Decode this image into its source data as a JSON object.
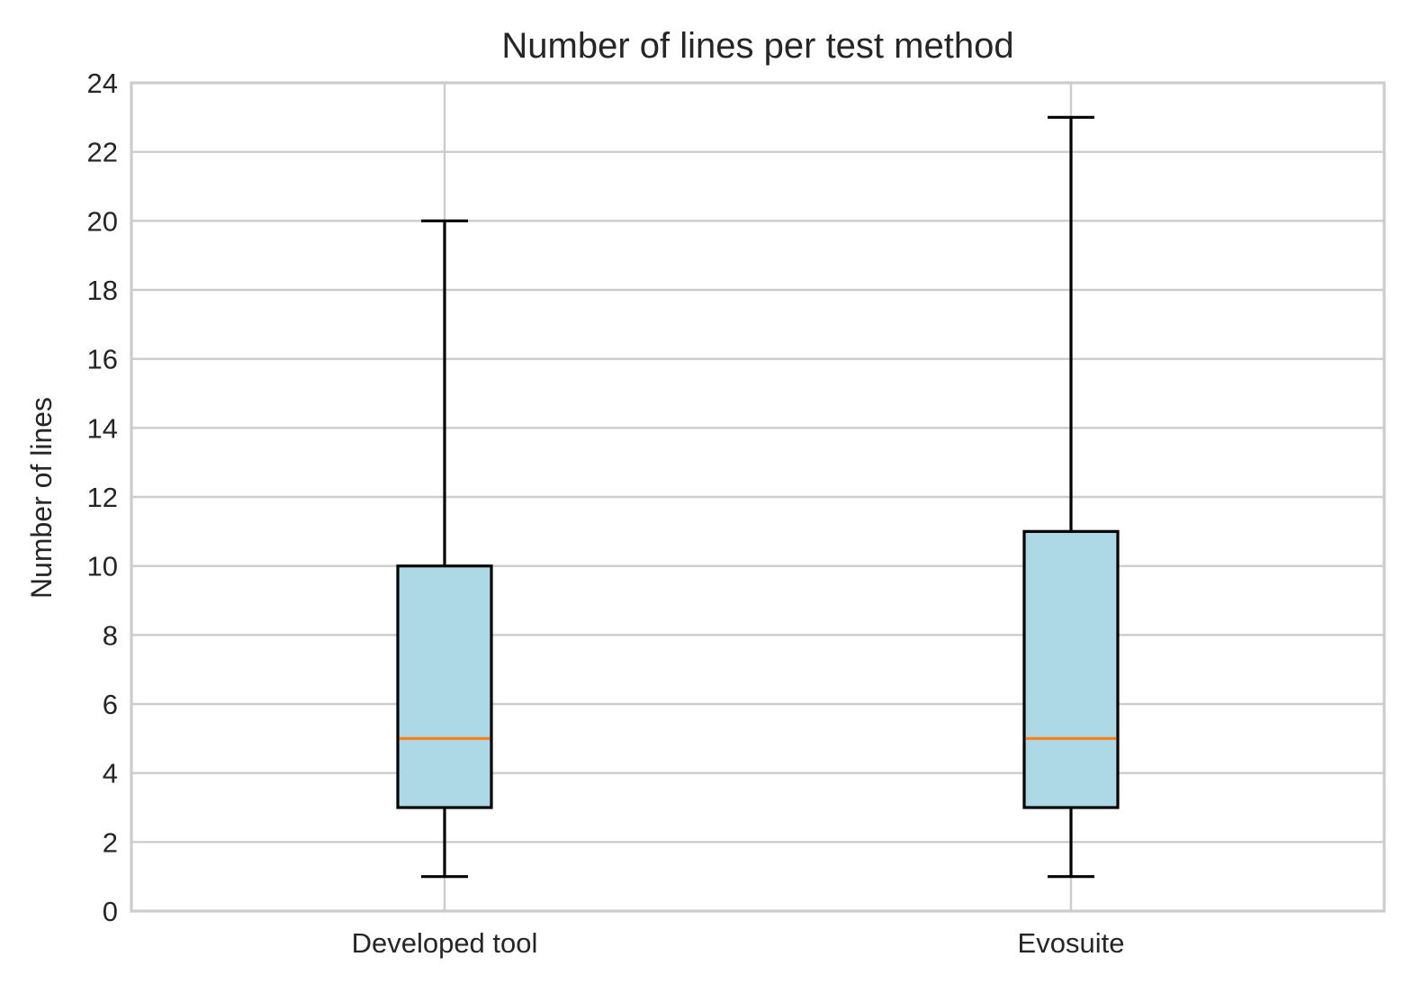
{
  "chart_data": {
    "type": "box",
    "title": "Number of lines per test method",
    "xlabel": "",
    "ylabel": "Number of lines",
    "ylim": [
      0,
      24
    ],
    "yticks": [
      0,
      2,
      4,
      6,
      8,
      10,
      12,
      14,
      16,
      18,
      20,
      22,
      24
    ],
    "categories": [
      "Developed tool",
      "Evosuite"
    ],
    "boxes": [
      {
        "category": "Developed tool",
        "whisker_low": 1,
        "q1": 3,
        "median": 5,
        "q3": 10,
        "whisker_high": 20
      },
      {
        "category": "Evosuite",
        "whisker_low": 1,
        "q1": 3,
        "median": 5,
        "q3": 11,
        "whisker_high": 23
      }
    ],
    "grid": true,
    "colors": {
      "box_fill": "#add8e6",
      "box_edge": "#000000",
      "median": "#ff7f0e",
      "grid": "#cccccc",
      "frame": "#cccccc"
    }
  }
}
